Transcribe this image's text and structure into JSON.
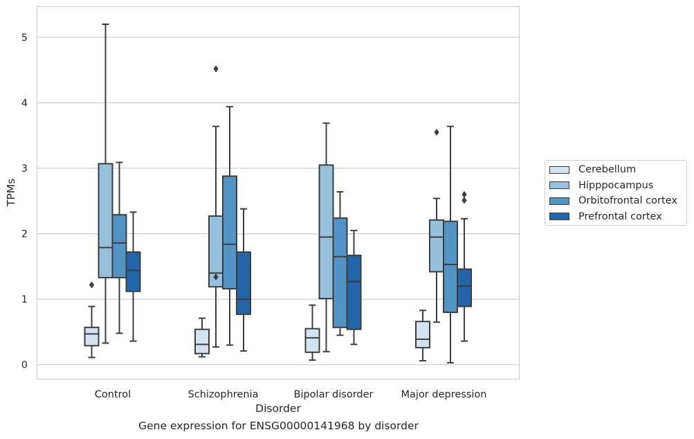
{
  "caption": "Gene expression for ENSG00000141968 by disorder",
  "colors": {
    "Cerebellum": "#d3e3f1",
    "Hipppocampus": "#96c1dd",
    "Orbitofrontal cortex": "#5294c4",
    "Prefrontal cortex": "#2365a9",
    "line": "#3d3d3d",
    "grid": "#cccccc"
  },
  "chart_data": {
    "type": "boxplot",
    "xlabel": "Disorder",
    "ylabel": "TPMs",
    "ylim": [
      -0.22,
      5.47
    ],
    "yticks": [
      0,
      1,
      2,
      3,
      4,
      5
    ],
    "grid": true,
    "legend_position": "right",
    "categories": [
      "Control",
      "Schizophrenia",
      "Bipolar disorder",
      "Major depression"
    ],
    "series": [
      {
        "name": "Cerebellum",
        "boxes": [
          {
            "whislo": 0.11,
            "q1": 0.29,
            "med": 0.47,
            "q3": 0.57,
            "whishi": 0.89,
            "fliers": [
              1.22
            ]
          },
          {
            "whislo": 0.12,
            "q1": 0.17,
            "med": 0.31,
            "q3": 0.54,
            "whishi": 0.71,
            "fliers": []
          },
          {
            "whislo": 0.07,
            "q1": 0.19,
            "med": 0.41,
            "q3": 0.55,
            "whishi": 0.91,
            "fliers": []
          },
          {
            "whislo": 0.06,
            "q1": 0.26,
            "med": 0.39,
            "q3": 0.66,
            "whishi": 0.83,
            "fliers": []
          }
        ]
      },
      {
        "name": "Hipppocampus",
        "boxes": [
          {
            "whislo": 0.33,
            "q1": 1.33,
            "med": 1.79,
            "q3": 3.07,
            "whishi": 5.2,
            "fliers": []
          },
          {
            "whislo": 0.27,
            "q1": 1.19,
            "med": 1.4,
            "q3": 2.27,
            "whishi": 3.64,
            "fliers": [
              1.34,
              4.52
            ]
          },
          {
            "whislo": 0.2,
            "q1": 1.01,
            "med": 1.95,
            "q3": 3.05,
            "whishi": 3.69,
            "fliers": []
          },
          {
            "whislo": 0.65,
            "q1": 1.42,
            "med": 1.95,
            "q3": 2.21,
            "whishi": 2.54,
            "fliers": [
              3.55
            ]
          }
        ]
      },
      {
        "name": "Orbitofrontal cortex",
        "boxes": [
          {
            "whislo": 0.48,
            "q1": 1.33,
            "med": 1.86,
            "q3": 2.29,
            "whishi": 3.09,
            "fliers": []
          },
          {
            "whislo": 0.3,
            "q1": 1.16,
            "med": 1.84,
            "q3": 2.88,
            "whishi": 3.94,
            "fliers": []
          },
          {
            "whislo": 0.45,
            "q1": 0.57,
            "med": 1.65,
            "q3": 2.24,
            "whishi": 2.64,
            "fliers": []
          },
          {
            "whislo": 0.03,
            "q1": 0.8,
            "med": 1.53,
            "q3": 2.19,
            "whishi": 3.64,
            "fliers": []
          }
        ]
      },
      {
        "name": "Prefrontal cortex",
        "boxes": [
          {
            "whislo": 0.36,
            "q1": 1.12,
            "med": 1.44,
            "q3": 1.72,
            "whishi": 2.33,
            "fliers": []
          },
          {
            "whislo": 0.21,
            "q1": 0.77,
            "med": 1.0,
            "q3": 1.72,
            "whishi": 2.38,
            "fliers": []
          },
          {
            "whislo": 0.31,
            "q1": 0.54,
            "med": 1.27,
            "q3": 1.67,
            "whishi": 2.05,
            "fliers": []
          },
          {
            "whislo": 0.36,
            "q1": 0.89,
            "med": 1.2,
            "q3": 1.46,
            "whishi": 2.23,
            "fliers": [
              2.51,
              2.6
            ]
          }
        ]
      }
    ]
  }
}
